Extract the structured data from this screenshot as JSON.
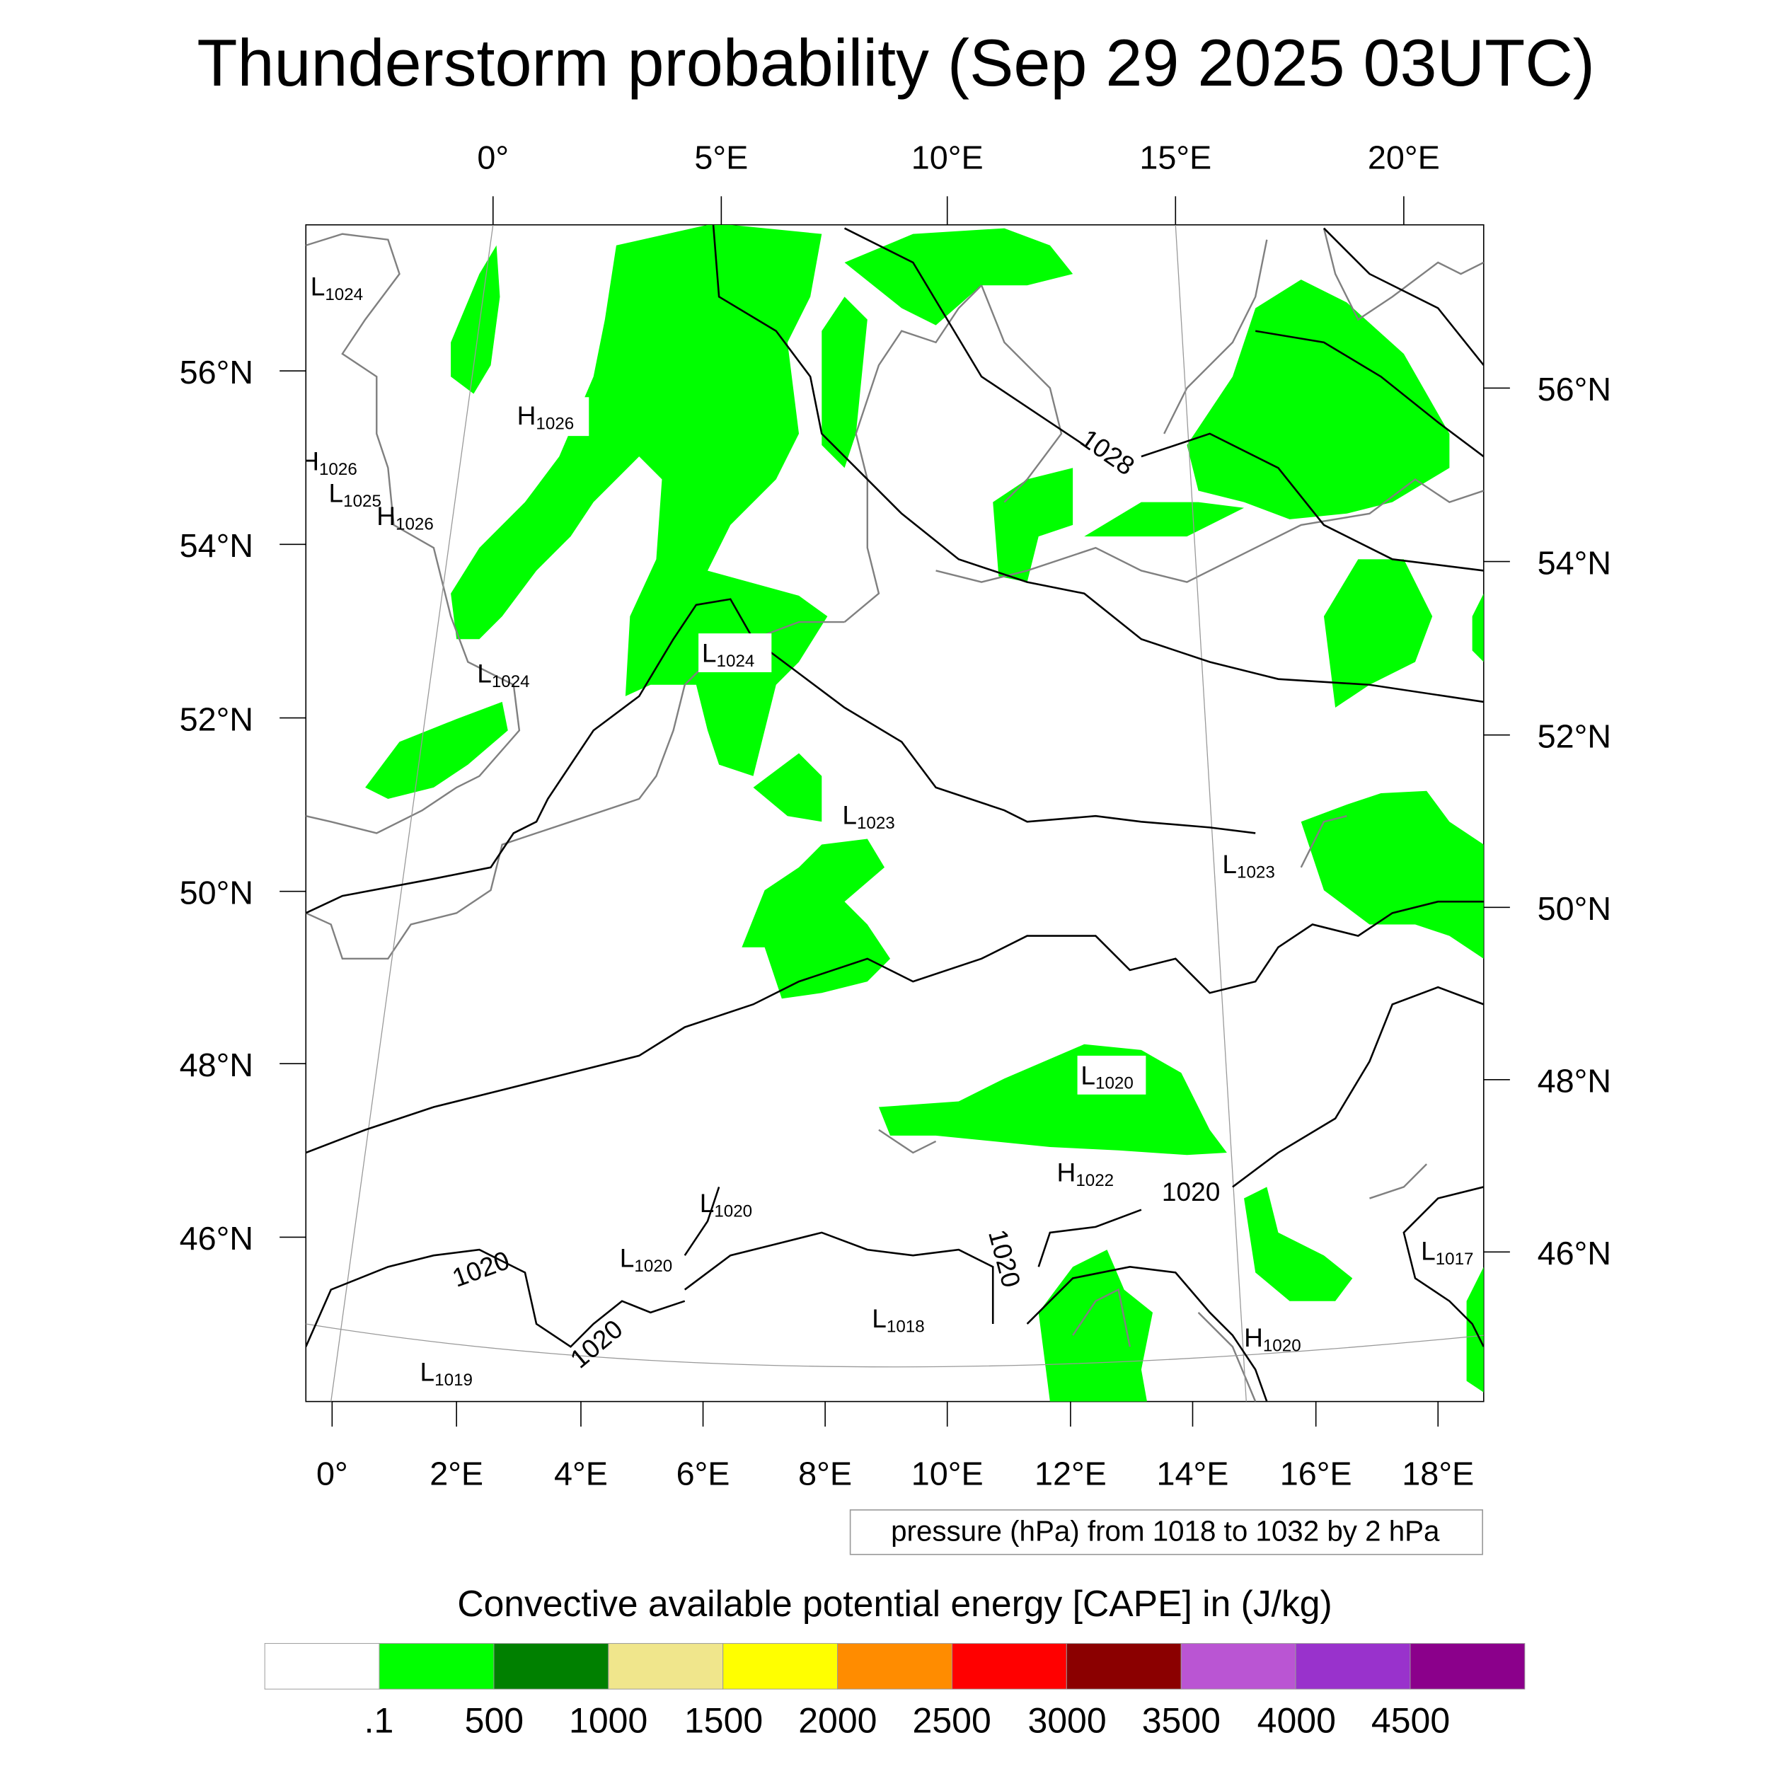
{
  "title": "Thunderstorm probability (Sep 29 2025 03UTC)",
  "chart_data": {
    "type": "heatmap",
    "title": "Thunderstorm probability (Sep 29 2025 03UTC)",
    "top_lon_labels": [
      "0°",
      "5°E",
      "10°E",
      "15°E",
      "20°E"
    ],
    "bottom_lon_labels": [
      "0°",
      "2°E",
      "4°E",
      "6°E",
      "8°E",
      "10°E",
      "12°E",
      "14°E",
      "16°E",
      "18°E"
    ],
    "left_lat_labels": [
      "56°N",
      "54°N",
      "52°N",
      "50°N",
      "48°N",
      "46°N"
    ],
    "right_lat_labels": [
      "56°N",
      "54°N",
      "52°N",
      "50°N",
      "48°N",
      "46°N"
    ],
    "contour_note": "pressure (hPa) from 1018 to 1032 by 2 hPa",
    "pressure_centers": [
      {
        "letter": "L",
        "value": "1024"
      },
      {
        "letter": "H",
        "value": "1026"
      },
      {
        "letter": "H",
        "value": "1026"
      },
      {
        "letter": "L",
        "value": "1025"
      },
      {
        "letter": "H",
        "value": "1026"
      },
      {
        "letter": "L",
        "value": "1024"
      },
      {
        "letter": "L",
        "value": "1024"
      },
      {
        "letter": "L",
        "value": "1023"
      },
      {
        "letter": "L",
        "value": "1023"
      },
      {
        "letter": "L",
        "value": "1020"
      },
      {
        "letter": "H",
        "value": "1022"
      },
      {
        "letter": "L",
        "value": "1020"
      },
      {
        "letter": "L",
        "value": "1020"
      },
      {
        "letter": "L",
        "value": "1018"
      },
      {
        "letter": "H",
        "value": "1020"
      },
      {
        "letter": "L",
        "value": "1017"
      },
      {
        "letter": "L",
        "value": "1019"
      }
    ],
    "contour_labels": [
      "1028",
      "1020",
      "1020",
      "1020",
      "1020"
    ],
    "colorbar": {
      "title": "Convective available potential energy [CAPE] in (J/kg)",
      "levels": [
        ".1",
        "500",
        "1000",
        "1500",
        "2000",
        "2500",
        "3000",
        "3500",
        "4000",
        "4500"
      ],
      "colors": [
        "#ffffff",
        "#00ff00",
        "#008000",
        "#f0e68c",
        "#ffff00",
        "#ff8c00",
        "#ff0000",
        "#8b0000",
        "#ba55d3",
        "#9932cc",
        "#8b008b"
      ]
    },
    "colors": {
      "coast": "#808080",
      "isobar": "#000000",
      "cape_low": "#00ff00"
    }
  }
}
